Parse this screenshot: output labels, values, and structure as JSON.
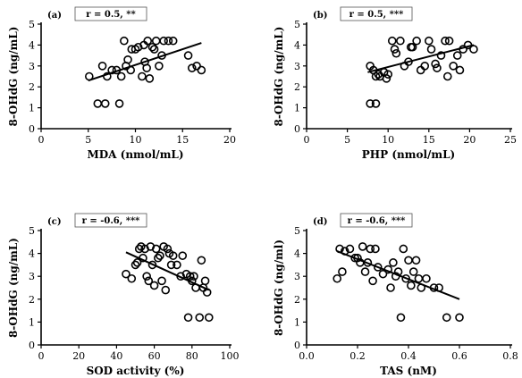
{
  "chart_data": [
    {
      "type": "scatter",
      "panel_label": "(a)",
      "annotation": "r = 0.5, **",
      "xlabel": "MDA (nmol/mL)",
      "ylabel": "8-OHdG (ng/mL)",
      "xlim": [
        0,
        20
      ],
      "ylim": [
        0,
        5
      ],
      "xticks": [
        0,
        5,
        10,
        15,
        20
      ],
      "yticks": [
        0,
        1,
        2,
        3,
        4,
        5
      ],
      "xtick_labels": [
        "0",
        "5",
        "10",
        "15",
        "20"
      ],
      "ytick_labels": [
        "0",
        "1",
        "2",
        "3",
        "4",
        "5"
      ],
      "points": [
        [
          5.1,
          2.5
        ],
        [
          6.0,
          1.2
        ],
        [
          6.8,
          1.2
        ],
        [
          8.3,
          1.2
        ],
        [
          6.5,
          3.0
        ],
        [
          7.0,
          2.5
        ],
        [
          7.5,
          2.8
        ],
        [
          8.0,
          2.8
        ],
        [
          8.5,
          2.5
        ],
        [
          8.8,
          4.2
        ],
        [
          9.0,
          3.0
        ],
        [
          9.2,
          3.3
        ],
        [
          9.5,
          2.8
        ],
        [
          9.6,
          3.8
        ],
        [
          10.0,
          3.8
        ],
        [
          10.3,
          3.9
        ],
        [
          10.7,
          2.5
        ],
        [
          10.9,
          4.0
        ],
        [
          11.0,
          3.2
        ],
        [
          11.2,
          2.9
        ],
        [
          11.3,
          4.2
        ],
        [
          11.5,
          2.4
        ],
        [
          11.8,
          3.9
        ],
        [
          12.0,
          3.8
        ],
        [
          12.2,
          4.2
        ],
        [
          12.5,
          3.0
        ],
        [
          12.8,
          3.5
        ],
        [
          13.0,
          4.2
        ],
        [
          13.5,
          4.2
        ],
        [
          14.0,
          4.2
        ],
        [
          15.6,
          3.5
        ],
        [
          16.0,
          2.9
        ],
        [
          16.5,
          3.0
        ],
        [
          17.0,
          2.8
        ]
      ],
      "fit_line": [
        [
          5.0,
          2.3
        ],
        [
          17.0,
          4.1
        ]
      ]
    },
    {
      "type": "scatter",
      "panel_label": "(b)",
      "annotation": "r = 0.5, ***",
      "xlabel": "PHP (nmol/mL)",
      "ylabel": "8-OHdG (ng/mL)",
      "xlim": [
        0,
        25
      ],
      "ylim": [
        0,
        5
      ],
      "xticks": [
        0,
        5,
        10,
        15,
        20,
        25
      ],
      "yticks": [
        0,
        1,
        2,
        3,
        4,
        5
      ],
      "xtick_labels": [
        "0",
        "5",
        "10",
        "15",
        "20",
        "25"
      ],
      "ytick_labels": [
        "0",
        "1",
        "2",
        "3",
        "4",
        "5"
      ],
      "points": [
        [
          7.8,
          1.2
        ],
        [
          8.5,
          1.2
        ],
        [
          7.8,
          3.0
        ],
        [
          8.2,
          2.8
        ],
        [
          8.5,
          2.5
        ],
        [
          8.8,
          2.6
        ],
        [
          9.0,
          2.5
        ],
        [
          9.5,
          2.7
        ],
        [
          9.8,
          2.4
        ],
        [
          10.0,
          2.6
        ],
        [
          10.5,
          4.2
        ],
        [
          10.8,
          3.8
        ],
        [
          11.0,
          3.6
        ],
        [
          11.5,
          4.2
        ],
        [
          12.0,
          3.0
        ],
        [
          12.5,
          3.2
        ],
        [
          12.8,
          3.9
        ],
        [
          13.0,
          3.9
        ],
        [
          13.5,
          4.2
        ],
        [
          14.0,
          2.8
        ],
        [
          14.5,
          3.0
        ],
        [
          15.0,
          4.2
        ],
        [
          15.3,
          3.8
        ],
        [
          15.8,
          3.1
        ],
        [
          16.0,
          2.9
        ],
        [
          16.5,
          3.5
        ],
        [
          17.0,
          4.2
        ],
        [
          17.3,
          2.5
        ],
        [
          17.5,
          4.2
        ],
        [
          18.0,
          3.0
        ],
        [
          18.5,
          3.5
        ],
        [
          18.8,
          2.8
        ],
        [
          19.2,
          3.8
        ],
        [
          19.8,
          4.0
        ],
        [
          20.5,
          3.8
        ]
      ],
      "fit_line": [
        [
          7.5,
          2.7
        ],
        [
          20.5,
          4.0
        ]
      ]
    },
    {
      "type": "scatter",
      "panel_label": "(c)",
      "annotation": "r = -0.6, ***",
      "xlabel": "SOD activity (%)",
      "ylabel": "8-OHdG (ng/mL)",
      "xlim": [
        0,
        100
      ],
      "ylim": [
        0,
        5
      ],
      "xticks": [
        0,
        20,
        40,
        60,
        80,
        100
      ],
      "yticks": [
        0,
        1,
        2,
        3,
        4,
        5
      ],
      "xtick_labels": [
        "0",
        "20",
        "40",
        "60",
        "80",
        "100"
      ],
      "ytick_labels": [
        "0",
        "1",
        "2",
        "3",
        "4",
        "5"
      ],
      "points": [
        [
          45,
          3.1
        ],
        [
          48,
          2.9
        ],
        [
          50,
          3.5
        ],
        [
          51,
          3.6
        ],
        [
          52,
          4.2
        ],
        [
          53,
          4.3
        ],
        [
          54,
          3.8
        ],
        [
          55,
          4.2
        ],
        [
          56,
          3.0
        ],
        [
          57,
          2.8
        ],
        [
          58,
          4.3
        ],
        [
          59,
          3.5
        ],
        [
          60,
          2.6
        ],
        [
          61,
          4.2
        ],
        [
          62,
          3.8
        ],
        [
          63,
          3.9
        ],
        [
          64,
          2.8
        ],
        [
          65,
          4.3
        ],
        [
          66,
          2.4
        ],
        [
          67,
          4.2
        ],
        [
          68,
          4.0
        ],
        [
          69,
          3.5
        ],
        [
          70,
          3.9
        ],
        [
          72,
          3.5
        ],
        [
          74,
          3.0
        ],
        [
          75,
          3.9
        ],
        [
          77,
          3.1
        ],
        [
          78,
          1.2
        ],
        [
          79,
          3.0
        ],
        [
          80,
          2.8
        ],
        [
          81,
          3.0
        ],
        [
          82,
          2.5
        ],
        [
          84,
          1.2
        ],
        [
          85,
          3.7
        ],
        [
          86,
          2.5
        ],
        [
          87,
          2.8
        ],
        [
          88,
          2.3
        ],
        [
          89,
          1.2
        ]
      ],
      "fit_line": [
        [
          45,
          4.05
        ],
        [
          89,
          2.4
        ]
      ]
    },
    {
      "type": "scatter",
      "panel_label": "(d)",
      "annotation": "r = -0.6, ***",
      "xlabel": "TAS (nM)",
      "ylabel": "8-OHdG (ng/ml)",
      "xlim": [
        0,
        0.8
      ],
      "ylim": [
        0,
        5
      ],
      "xticks": [
        0,
        0.2,
        0.4,
        0.6,
        0.8
      ],
      "yticks": [
        0,
        1,
        2,
        3,
        4,
        5
      ],
      "xtick_labels": [
        "0.0",
        "0.2",
        "0.4",
        "0.6",
        "0.8"
      ],
      "ytick_labels": [
        "0",
        "1",
        "2",
        "3",
        "4",
        "5"
      ],
      "points": [
        [
          0.12,
          2.9
        ],
        [
          0.13,
          4.2
        ],
        [
          0.14,
          3.2
        ],
        [
          0.15,
          4.1
        ],
        [
          0.17,
          4.2
        ],
        [
          0.19,
          3.8
        ],
        [
          0.2,
          3.8
        ],
        [
          0.21,
          3.6
        ],
        [
          0.22,
          4.3
        ],
        [
          0.23,
          3.2
        ],
        [
          0.24,
          3.6
        ],
        [
          0.25,
          4.2
        ],
        [
          0.26,
          2.8
        ],
        [
          0.27,
          4.2
        ],
        [
          0.28,
          3.4
        ],
        [
          0.3,
          3.1
        ],
        [
          0.32,
          3.3
        ],
        [
          0.33,
          2.5
        ],
        [
          0.34,
          3.6
        ],
        [
          0.35,
          3.0
        ],
        [
          0.36,
          3.2
        ],
        [
          0.37,
          1.2
        ],
        [
          0.38,
          4.2
        ],
        [
          0.39,
          2.9
        ],
        [
          0.4,
          3.7
        ],
        [
          0.41,
          2.6
        ],
        [
          0.42,
          3.2
        ],
        [
          0.43,
          3.7
        ],
        [
          0.44,
          2.9
        ],
        [
          0.45,
          2.5
        ],
        [
          0.47,
          2.9
        ],
        [
          0.5,
          2.5
        ],
        [
          0.52,
          2.5
        ],
        [
          0.55,
          1.2
        ],
        [
          0.6,
          1.2
        ]
      ],
      "fit_line": [
        [
          0.12,
          4.1
        ],
        [
          0.6,
          2.0
        ]
      ]
    }
  ]
}
